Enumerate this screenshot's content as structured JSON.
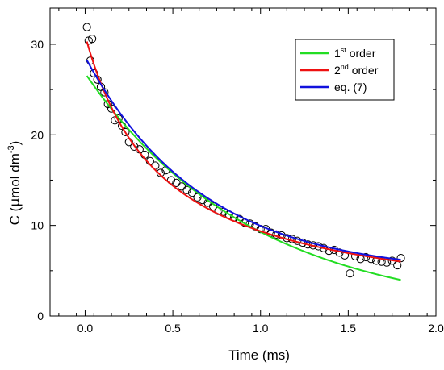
{
  "chart_data": {
    "type": "scatter",
    "xlabel": "Time (ms)",
    "ylabel": {
      "prefix": "C (",
      "mu": "μ",
      "rest": "mol dm",
      "sup": "-3",
      "suffix": ")"
    },
    "xlim": [
      -0.2,
      2.0
    ],
    "ylim": [
      0,
      34
    ],
    "x_ticks": [
      0.0,
      0.5,
      1.0,
      1.5,
      2.0
    ],
    "x_tick_labels": [
      "0.0",
      "0.5",
      "1.0",
      "1.5",
      "2.0"
    ],
    "y_ticks": [
      0,
      10,
      20,
      30
    ],
    "y_tick_labels": [
      "0",
      "10",
      "20",
      "30"
    ],
    "grid": false,
    "legend": {
      "placement": "top-right",
      "entries": [
        {
          "base": "1",
          "sup": "st",
          "rest": " order",
          "color": "#22dd22"
        },
        {
          "base": "2",
          "sup": "nd",
          "rest": " order",
          "color": "#ee1111"
        },
        {
          "base": "eq. (7)",
          "sup": "",
          "rest": "",
          "color": "#1111dd"
        }
      ]
    },
    "series": [
      {
        "kind": "points",
        "marker": "open-circle",
        "x": [
          0.01,
          0.02,
          0.03,
          0.04,
          0.05,
          0.07,
          0.09,
          0.11,
          0.13,
          0.15,
          0.17,
          0.19,
          0.21,
          0.23,
          0.25,
          0.28,
          0.31,
          0.34,
          0.37,
          0.4,
          0.43,
          0.46,
          0.49,
          0.52,
          0.55,
          0.58,
          0.61,
          0.64,
          0.67,
          0.7,
          0.73,
          0.76,
          0.79,
          0.82,
          0.85,
          0.88,
          0.91,
          0.94,
          0.97,
          1.0,
          1.03,
          1.06,
          1.09,
          1.12,
          1.15,
          1.18,
          1.21,
          1.24,
          1.27,
          1.3,
          1.33,
          1.36,
          1.39,
          1.42,
          1.45,
          1.48,
          1.51,
          1.54,
          1.57,
          1.6,
          1.63,
          1.66,
          1.69,
          1.72,
          1.75,
          1.78,
          1.8
        ],
        "y": [
          31.9,
          30.4,
          28.2,
          30.6,
          26.8,
          26.1,
          25.3,
          24.7,
          23.4,
          22.9,
          21.6,
          21.8,
          21.0,
          20.3,
          19.2,
          18.7,
          18.4,
          17.8,
          17.1,
          16.6,
          15.8,
          16.1,
          15.0,
          14.7,
          14.3,
          13.9,
          13.6,
          13.1,
          12.8,
          12.5,
          12.1,
          11.6,
          11.5,
          11.2,
          10.9,
          10.7,
          10.3,
          10.2,
          9.9,
          9.6,
          9.6,
          9.2,
          9.0,
          8.9,
          8.6,
          8.5,
          8.3,
          8.1,
          7.9,
          7.8,
          7.7,
          7.5,
          7.2,
          7.3,
          7.0,
          6.7,
          4.7,
          6.6,
          6.3,
          6.5,
          6.3,
          6.1,
          6.0,
          5.9,
          6.1,
          5.6,
          6.4
        ]
      },
      {
        "kind": "line",
        "color": "#22dd22",
        "model": "first_order",
        "params": {
          "c0": 26.8,
          "k": 1.06
        }
      },
      {
        "kind": "line",
        "color": "#ee1111",
        "model": "second_order",
        "params": {
          "c0": 31.0,
          "k": 0.0745
        }
      },
      {
        "kind": "line",
        "color": "#1111dd",
        "model": "mixed",
        "params": {
          "a": 24.0,
          "k": 1.5,
          "b": 4.6
        }
      }
    ]
  }
}
